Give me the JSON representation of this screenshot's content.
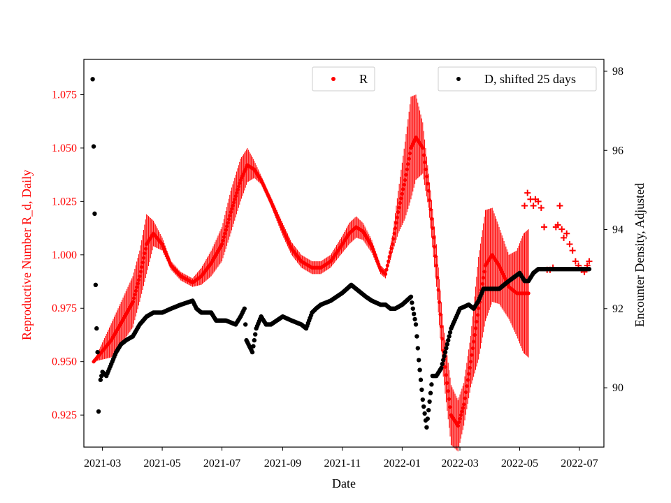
{
  "chart_data": {
    "type": "scatter",
    "xlabel": "Date",
    "ylabel_left": "Reproductive Number R_d, Daily",
    "ylabel_right": "Encounter Density, Adjusted",
    "x_ticks": [
      "2021-03",
      "2021-05",
      "2021-07",
      "2021-09",
      "2021-11",
      "2022-01",
      "2022-03",
      "2022-05",
      "2022-07"
    ],
    "y_left_ticks": [
      "0.925",
      "0.950",
      "0.975",
      "1.000",
      "1.025",
      "1.050",
      "1.075"
    ],
    "y_right_ticks": [
      "90",
      "92",
      "94",
      "96",
      "98"
    ],
    "x_range": [
      "2021-02-10",
      "2022-07-26"
    ],
    "y_left_range": [
      0.91,
      1.0915
    ],
    "y_right_range": [
      88.5,
      98.3
    ],
    "legend": [
      {
        "label": "R",
        "color": "#ff0000",
        "placement": "top-center"
      },
      {
        "label": "D, shifted 25 days",
        "color": "#000000",
        "placement": "top-right"
      }
    ],
    "colors": {
      "R": "#ff0000",
      "D": "#000000",
      "axis_left": "#ff0000",
      "axis_right": "#000000"
    },
    "series": [
      {
        "name": "R",
        "axis": "left",
        "marker": "dot",
        "x": [
          "2021-02-20",
          "2021-03-01",
          "2021-03-10",
          "2021-03-20",
          "2021-04-01",
          "2021-04-08",
          "2021-04-15",
          "2021-04-22",
          "2021-05-01",
          "2021-05-10",
          "2021-05-20",
          "2021-06-01",
          "2021-06-10",
          "2021-06-20",
          "2021-07-01",
          "2021-07-10",
          "2021-07-20",
          "2021-07-27",
          "2021-08-03",
          "2021-08-10",
          "2021-08-20",
          "2021-09-01",
          "2021-09-10",
          "2021-09-20",
          "2021-10-01",
          "2021-10-10",
          "2021-10-20",
          "2021-11-01",
          "2021-11-08",
          "2021-11-15",
          "2021-11-22",
          "2021-12-01",
          "2021-12-10",
          "2021-12-15",
          "2021-12-22",
          "2021-12-28",
          "2022-01-04",
          "2022-01-10",
          "2022-01-15",
          "2022-01-22",
          "2022-01-28",
          "2022-02-05",
          "2022-02-12",
          "2022-02-20",
          "2022-02-27",
          "2022-03-05",
          "2022-03-12",
          "2022-03-20",
          "2022-03-27",
          "2022-04-03",
          "2022-04-10",
          "2022-04-20",
          "2022-04-28",
          "2022-05-05",
          "2022-05-10"
        ],
        "y": [
          0.95,
          0.955,
          0.96,
          0.968,
          0.978,
          0.99,
          1.005,
          1.01,
          1.005,
          0.995,
          0.99,
          0.987,
          0.99,
          0.996,
          1.005,
          1.02,
          1.035,
          1.042,
          1.04,
          1.035,
          1.025,
          1.012,
          1.003,
          0.997,
          0.994,
          0.994,
          0.997,
          1.005,
          1.01,
          1.013,
          1.011,
          1.004,
          0.993,
          0.991,
          1.005,
          1.02,
          1.035,
          1.05,
          1.055,
          1.05,
          1.03,
          0.995,
          0.955,
          0.925,
          0.92,
          0.93,
          0.95,
          0.975,
          0.995,
          1.0,
          0.995,
          0.985,
          0.982,
          0.982,
          0.982
        ],
        "oscillation_amplitude": [
          0.0,
          0.004,
          0.008,
          0.01,
          0.012,
          0.012,
          0.014,
          0.006,
          0.003,
          0.002,
          0.002,
          0.002,
          0.004,
          0.006,
          0.008,
          0.01,
          0.01,
          0.008,
          0.004,
          0.002,
          0.002,
          0.003,
          0.003,
          0.003,
          0.003,
          0.003,
          0.003,
          0.004,
          0.005,
          0.005,
          0.004,
          0.003,
          0.002,
          0.002,
          0.004,
          0.01,
          0.018,
          0.024,
          0.02,
          0.012,
          0.008,
          0.01,
          0.012,
          0.014,
          0.012,
          0.01,
          0.012,
          0.024,
          0.026,
          0.022,
          0.018,
          0.015,
          0.02,
          0.028,
          0.03
        ]
      },
      {
        "name": "R",
        "axis": "left",
        "marker": "plus",
        "x": [
          "2022-05-06",
          "2022-05-09",
          "2022-05-12",
          "2022-05-15",
          "2022-05-17",
          "2022-05-20",
          "2022-05-23",
          "2022-05-26",
          "2022-05-29",
          "2022-06-01",
          "2022-06-04",
          "2022-06-07",
          "2022-06-09",
          "2022-06-11",
          "2022-06-13",
          "2022-06-15",
          "2022-06-18",
          "2022-06-21",
          "2022-06-24",
          "2022-06-27",
          "2022-06-30",
          "2022-07-03",
          "2022-07-06",
          "2022-07-09",
          "2022-07-11"
        ],
        "y": [
          1.023,
          1.029,
          1.026,
          1.023,
          1.026,
          1.025,
          1.022,
          1.013,
          0.993,
          0.993,
          0.994,
          1.013,
          1.014,
          1.023,
          1.012,
          1.008,
          1.01,
          1.005,
          1.002,
          0.997,
          0.995,
          0.993,
          0.992,
          0.995,
          0.997
        ]
      },
      {
        "name": "D, shifted 25 days",
        "axis": "right",
        "marker": "dot",
        "x": [
          "2021-02-19",
          "2021-02-20",
          "2021-02-21",
          "2021-02-22",
          "2021-02-23",
          "2021-02-24",
          "2021-02-25",
          "2021-02-27",
          "2021-03-01",
          "2021-03-05",
          "2021-03-10",
          "2021-03-15",
          "2021-03-20",
          "2021-03-25",
          "2021-04-01",
          "2021-04-08",
          "2021-04-15",
          "2021-04-22",
          "2021-05-01",
          "2021-05-10",
          "2021-05-20",
          "2021-06-01",
          "2021-06-05",
          "2021-06-10",
          "2021-06-20",
          "2021-06-25",
          "2021-06-30",
          "2021-07-05",
          "2021-07-15",
          "2021-07-20",
          "2021-07-24",
          "2021-07-26",
          "2021-08-01",
          "2021-08-05",
          "2021-08-10",
          "2021-08-15",
          "2021-08-20",
          "2021-09-01",
          "2021-09-10",
          "2021-09-20",
          "2021-09-25",
          "2021-10-01",
          "2021-10-05",
          "2021-10-10",
          "2021-10-20",
          "2021-11-01",
          "2021-11-10",
          "2021-11-15",
          "2021-11-20",
          "2021-11-25",
          "2021-12-01",
          "2021-12-10",
          "2021-12-15",
          "2021-12-20",
          "2021-12-25",
          "2022-01-01",
          "2022-01-10",
          "2022-01-12",
          "2022-01-15",
          "2022-01-18",
          "2022-01-22",
          "2022-01-26",
          "2022-02-01",
          "2022-02-05",
          "2022-02-10",
          "2022-02-15",
          "2022-02-20",
          "2022-03-01",
          "2022-03-10",
          "2022-03-15",
          "2022-03-20",
          "2022-03-25",
          "2022-04-01",
          "2022-04-10",
          "2022-04-15",
          "2022-04-20",
          "2022-05-01",
          "2022-05-06",
          "2022-05-10",
          "2022-05-15",
          "2022-05-20",
          "2022-05-25",
          "2022-06-01",
          "2022-06-10",
          "2022-06-20",
          "2022-07-01",
          "2022-07-11"
        ],
        "y": [
          97.8,
          96.1,
          94.4,
          92.6,
          91.5,
          90.9,
          89.4,
          90.2,
          90.4,
          90.3,
          90.6,
          90.9,
          91.1,
          91.2,
          91.3,
          91.6,
          91.8,
          91.9,
          91.9,
          92.0,
          92.1,
          92.2,
          92.0,
          91.9,
          91.9,
          91.7,
          91.7,
          91.7,
          91.6,
          91.8,
          92.0,
          91.2,
          90.9,
          91.5,
          91.8,
          91.6,
          91.6,
          91.8,
          91.7,
          91.6,
          91.5,
          91.9,
          92.0,
          92.1,
          92.2,
          92.4,
          92.6,
          92.5,
          92.4,
          92.3,
          92.2,
          92.1,
          92.1,
          92.0,
          92.0,
          92.1,
          92.3,
          92.0,
          91.6,
          90.7,
          89.7,
          89.0,
          90.3,
          90.3,
          90.5,
          91.0,
          91.5,
          92.0,
          92.1,
          92.0,
          92.2,
          92.5,
          92.5,
          92.5,
          92.6,
          92.7,
          92.9,
          92.7,
          92.7,
          92.9,
          93.0,
          93.0,
          93.0,
          93.0,
          93.0,
          93.0,
          93.0
        ]
      }
    ]
  }
}
